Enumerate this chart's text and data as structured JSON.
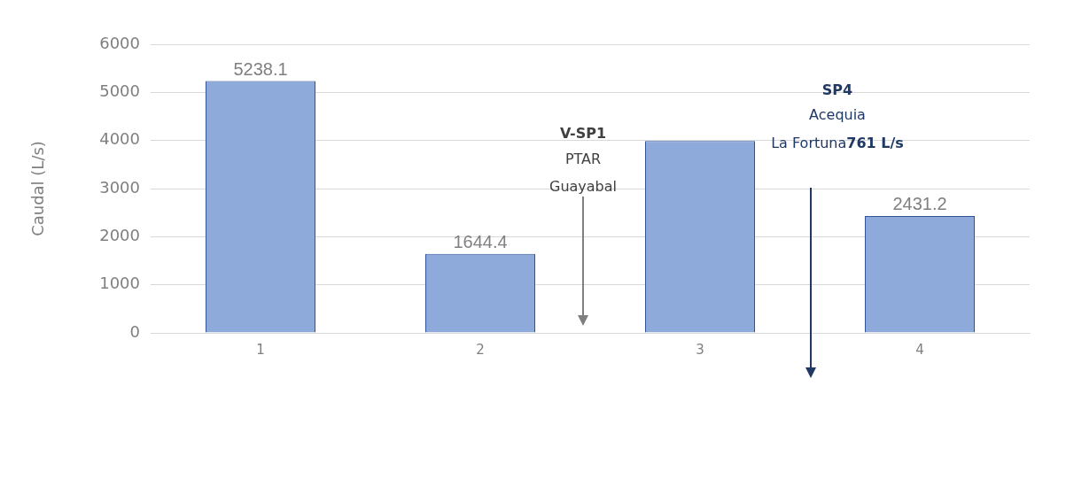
{
  "chart_data": {
    "type": "bar",
    "ylabel": "Caudal (L/s)",
    "categories": [
      "1",
      "2",
      "3",
      "4"
    ],
    "values": [
      5238.1,
      1644.4,
      3990,
      2431.2
    ],
    "value_labels": [
      "5238.1",
      "1644.4",
      null,
      "2431.2"
    ],
    "color": "#8eaadb",
    "ylim": [
      0,
      6000
    ],
    "yticks": [
      0,
      1000,
      2000,
      3000,
      4000,
      5000,
      6000
    ],
    "grid": "y",
    "legend": false,
    "annotations": [
      "V-SP1",
      "PTAR",
      "Guayabal",
      "SP4",
      "Acequia",
      "La Fortuna",
      "761 L/s"
    ]
  }
}
